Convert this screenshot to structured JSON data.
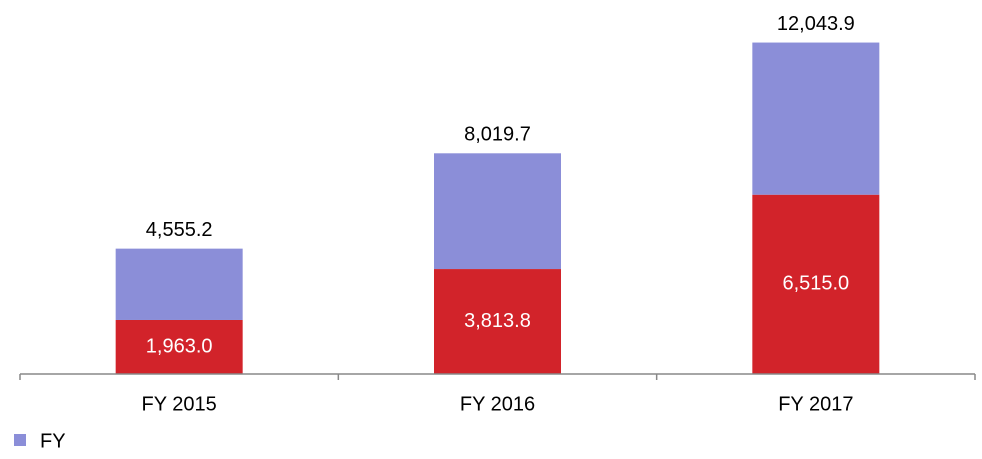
{
  "chart_data": {
    "type": "stacked_bar",
    "categories": [
      "FY 2015",
      "FY 2016",
      "FY 2017"
    ],
    "series": [
      {
        "color": "#d2232a",
        "values": [
          1963.0,
          3813.8,
          6515.0
        ],
        "value_labels": [
          "1,963.0",
          "3,813.8",
          "6,515.0"
        ]
      },
      {
        "name": "FY",
        "color": "#8b8ed8",
        "values": [
          2592.2,
          4205.9,
          5528.9
        ]
      }
    ],
    "totals": [
      4555.2,
      8019.7,
      12043.9
    ],
    "total_labels": [
      "4,555.2",
      "8,019.7",
      "12,043.9"
    ],
    "ylim": [
      0,
      12500
    ]
  }
}
